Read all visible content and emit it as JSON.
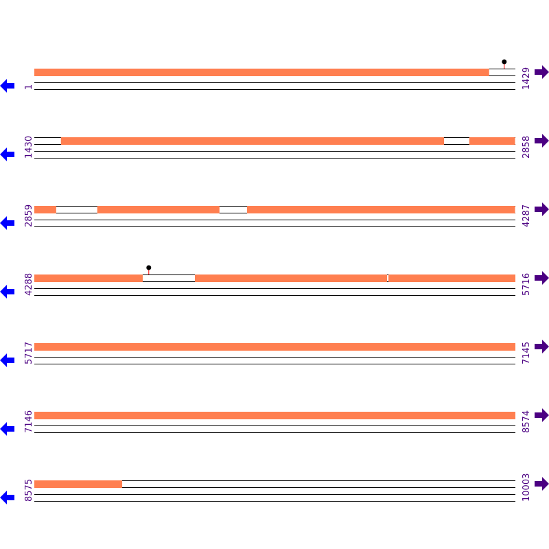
{
  "colors": {
    "feature": "#ff7f50",
    "line": "#000000",
    "marker_stem": "#ff0000",
    "left_arrow": "#0000ff",
    "right_arrow": "#4b0082",
    "label": "#4b0082"
  },
  "rows": [
    {
      "start": 1,
      "end": 1429
    },
    {
      "start": 1430,
      "end": 2858
    },
    {
      "start": 2859,
      "end": 4287
    },
    {
      "start": 4288,
      "end": 5716
    },
    {
      "start": 5717,
      "end": 7145
    },
    {
      "start": 7146,
      "end": 8574
    },
    {
      "start": 8575,
      "end": 10003
    }
  ],
  "features": [
    [
      1,
      1352
    ],
    [
      1509,
      2647
    ],
    [
      2722,
      2858
    ],
    [
      2859,
      2924
    ],
    [
      3046,
      3409
    ],
    [
      3491,
      4287
    ],
    [
      4288,
      4610
    ],
    [
      4765,
      5336
    ],
    [
      5340,
      8836
    ]
  ],
  "markers": [
    1397,
    4628
  ],
  "icons": {
    "left": "arrow-left-icon",
    "right": "arrow-right-icon"
  }
}
